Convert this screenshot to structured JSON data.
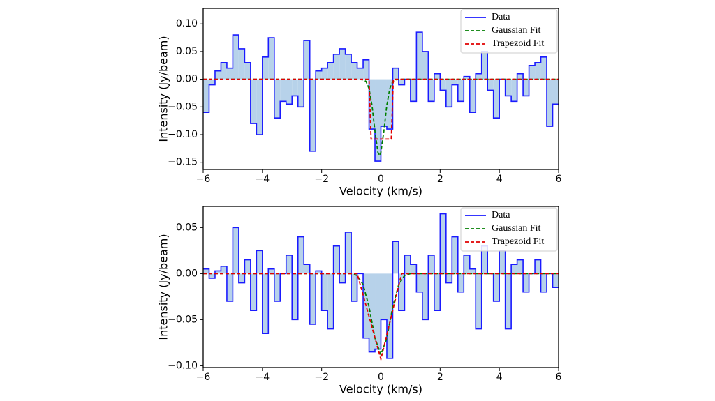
{
  "chart_data": [
    {
      "type": "step",
      "xlabel": "Velocity (km/s)",
      "ylabel": "Intensity (Jy/beam)",
      "xlim": [
        -6,
        6
      ],
      "ylim": [
        -0.163,
        0.128
      ],
      "xticks": [
        {
          "value": -6,
          "label": "−6"
        },
        {
          "value": -4,
          "label": "−4"
        },
        {
          "value": -2,
          "label": "−2"
        },
        0,
        2,
        4,
        6
      ],
      "yticks": [
        {
          "value": -0.15,
          "label": "−0.15"
        },
        {
          "value": -0.1,
          "label": "−0.10"
        },
        {
          "value": -0.05,
          "label": "−0.05"
        },
        {
          "value": 0,
          "label": "0.00"
        },
        {
          "value": 0.05,
          "label": "0.05"
        },
        {
          "value": 0.1,
          "label": "0.10"
        }
      ],
      "legend": "upper right",
      "series": [
        {
          "name": "Data",
          "style": "step",
          "color": "#1a1aff",
          "fill": "#b7d2ea",
          "x": [
            -5.9,
            -5.7,
            -5.5,
            -5.3,
            -5.1,
            -4.9,
            -4.7,
            -4.5,
            -4.3,
            -4.1,
            -3.9,
            -3.7,
            -3.5,
            -3.3,
            -3.1,
            -2.9,
            -2.7,
            -2.5,
            -2.3,
            -2.1,
            -1.9,
            -1.7,
            -1.5,
            -1.3,
            -1.1,
            -0.9,
            -0.7,
            -0.5,
            -0.3,
            -0.1,
            0.1,
            0.3,
            0.5,
            0.7,
            0.9,
            1.1,
            1.3,
            1.5,
            1.7,
            1.9,
            2.1,
            2.3,
            2.5,
            2.7,
            2.9,
            3.1,
            3.3,
            3.5,
            3.7,
            3.9,
            4.1,
            4.3,
            4.5,
            4.7,
            4.9,
            5.1,
            5.3,
            5.5,
            5.7,
            5.9
          ],
          "values": [
            -0.06,
            -0.01,
            0.015,
            0.03,
            0.02,
            0.08,
            0.055,
            0.03,
            -0.08,
            -0.1,
            0.04,
            0.075,
            -0.07,
            -0.04,
            -0.045,
            -0.03,
            -0.05,
            0.07,
            -0.13,
            0.015,
            0.02,
            0.03,
            0.045,
            0.055,
            0.045,
            0.03,
            0.02,
            0.035,
            -0.09,
            -0.148,
            -0.085,
            -0.09,
            0.02,
            -0.01,
            0.0,
            -0.04,
            0.085,
            0.05,
            -0.04,
            0.01,
            -0.02,
            -0.05,
            -0.01,
            -0.04,
            0.005,
            -0.06,
            0.01,
            0.05,
            -0.02,
            -0.07,
            0.0,
            -0.03,
            -0.04,
            0.01,
            -0.03,
            0.025,
            0.03,
            0.04,
            -0.085,
            -0.045
          ]
        },
        {
          "name": "Gaussian Fit",
          "style": "dashed",
          "color": "#007f00",
          "x": [
            -6,
            -0.8,
            -0.6,
            -0.5,
            -0.4,
            -0.3,
            -0.2,
            -0.1,
            -0.05,
            0,
            0.1,
            0.2,
            0.3,
            0.4,
            0.5,
            0.7,
            6
          ],
          "values": [
            0,
            0,
            -0.001,
            -0.004,
            -0.017,
            -0.047,
            -0.094,
            -0.132,
            -0.138,
            -0.132,
            -0.094,
            -0.047,
            -0.017,
            -0.004,
            -0.001,
            0,
            0
          ]
        },
        {
          "name": "Trapezoid Fit",
          "style": "dashed",
          "color": "#e00000",
          "x": [
            -6,
            -0.4,
            -0.33,
            0.35,
            0.42,
            6
          ],
          "values": [
            0,
            0,
            -0.108,
            -0.108,
            0,
            0
          ]
        }
      ]
    },
    {
      "type": "step",
      "xlabel": "Velocity (km/s)",
      "ylabel": "Intensity (Jy/beam)",
      "xlim": [
        -6,
        6
      ],
      "ylim": [
        -0.102,
        0.073
      ],
      "xticks": [
        {
          "value": -6,
          "label": "−6"
        },
        {
          "value": -4,
          "label": "−4"
        },
        {
          "value": -2,
          "label": "−2"
        },
        0,
        2,
        4,
        6
      ],
      "yticks": [
        {
          "value": -0.1,
          "label": "−0.10"
        },
        {
          "value": -0.05,
          "label": "−0.05"
        },
        {
          "value": 0,
          "label": "0.00"
        },
        {
          "value": 0.05,
          "label": "0.05"
        }
      ],
      "legend": "upper right",
      "series": [
        {
          "name": "Data",
          "style": "step",
          "color": "#1a1aff",
          "fill": "#b7d2ea",
          "x": [
            -5.9,
            -5.7,
            -5.5,
            -5.3,
            -5.1,
            -4.9,
            -4.7,
            -4.5,
            -4.3,
            -4.1,
            -3.9,
            -3.7,
            -3.5,
            -3.3,
            -3.1,
            -2.9,
            -2.7,
            -2.5,
            -2.3,
            -2.1,
            -1.9,
            -1.7,
            -1.5,
            -1.3,
            -1.1,
            -0.9,
            -0.7,
            -0.5,
            -0.3,
            -0.1,
            0.1,
            0.3,
            0.5,
            0.7,
            0.9,
            1.1,
            1.3,
            1.5,
            1.7,
            1.9,
            2.1,
            2.3,
            2.5,
            2.7,
            2.9,
            3.1,
            3.3,
            3.5,
            3.7,
            3.9,
            4.1,
            4.3,
            4.5,
            4.7,
            4.9,
            5.1,
            5.3,
            5.5,
            5.7,
            5.9
          ],
          "values": [
            0.005,
            -0.005,
            0.003,
            0.008,
            -0.03,
            0.05,
            -0.01,
            0.015,
            -0.04,
            0.025,
            -0.065,
            0.005,
            -0.03,
            0.0,
            0.02,
            -0.05,
            0.04,
            0.01,
            -0.055,
            0.003,
            -0.04,
            -0.06,
            0.03,
            -0.01,
            0.045,
            -0.03,
            0.0,
            -0.07,
            -0.085,
            -0.082,
            -0.05,
            -0.092,
            0.035,
            -0.04,
            0.02,
            0.01,
            -0.02,
            -0.05,
            0.02,
            -0.04,
            0.065,
            -0.01,
            0.04,
            -0.02,
            0.02,
            0.005,
            -0.06,
            0.03,
            0.0,
            -0.03,
            0.025,
            -0.06,
            0.01,
            0.015,
            -0.02,
            0.0,
            0.015,
            -0.02,
            0.0,
            -0.015
          ]
        },
        {
          "name": "Gaussian Fit",
          "style": "dashed",
          "color": "#007f00",
          "x": [
            -6,
            -1,
            -0.8,
            -0.6,
            -0.4,
            -0.2,
            0,
            0.2,
            0.4,
            0.6,
            0.8,
            1,
            6
          ],
          "values": [
            0,
            0,
            -0.002,
            -0.012,
            -0.036,
            -0.07,
            -0.088,
            -0.07,
            -0.036,
            -0.012,
            -0.002,
            0,
            0
          ]
        },
        {
          "name": "Trapezoid Fit",
          "style": "dashed",
          "color": "#e00000",
          "x": [
            -6,
            -0.8,
            0,
            0.7,
            6
          ],
          "values": [
            0,
            0,
            -0.093,
            0,
            0
          ]
        }
      ]
    }
  ]
}
